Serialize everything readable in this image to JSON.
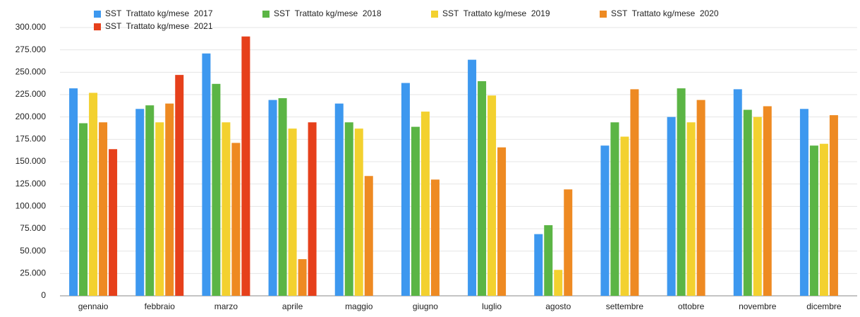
{
  "chart_data": {
    "type": "bar",
    "categories": [
      "gennaio",
      "febbraio",
      "marzo",
      "aprile",
      "maggio",
      "giugno",
      "luglio",
      "agosto",
      "settembre",
      "ottobre",
      "novembre",
      "dicembre"
    ],
    "series": [
      {
        "name": "SST  Trattato kg/mese  2017",
        "color": "#3d98ef",
        "values": [
          232000,
          209000,
          271000,
          219000,
          215000,
          238000,
          264000,
          69000,
          168000,
          200000,
          231000,
          209000
        ]
      },
      {
        "name": "SST  Trattato kg/mese  2018",
        "color": "#5bb545",
        "values": [
          193000,
          213000,
          237000,
          221000,
          194000,
          189000,
          240000,
          79000,
          194000,
          232000,
          208000,
          168000
        ]
      },
      {
        "name": "SST  Trattato kg/mese  2019",
        "color": "#f3d12f",
        "values": [
          227000,
          194000,
          194000,
          187000,
          187000,
          206000,
          224000,
          29000,
          178000,
          194000,
          200000,
          170000
        ]
      },
      {
        "name": "SST  Trattato kg/mese  2020",
        "color": "#ee8a22",
        "values": [
          194000,
          215000,
          171000,
          41000,
          134000,
          130000,
          166000,
          119000,
          231000,
          219000,
          212000,
          202000
        ]
      },
      {
        "name": "SST  Trattato kg/mese  2021",
        "color": "#e6401b",
        "values": [
          164000,
          247000,
          290000,
          194000,
          null,
          null,
          null,
          null,
          null,
          null,
          null,
          null
        ]
      }
    ],
    "ylim": [
      0,
      300000
    ],
    "yticks": [
      0,
      {
        "value": 25000,
        "label": "25.000"
      },
      {
        "value": 50000,
        "label": "50.000"
      },
      {
        "value": 75000,
        "label": "75.000"
      },
      {
        "value": 100000,
        "label": "100.000"
      },
      {
        "value": 125000,
        "label": "125.000"
      },
      {
        "value": 150000,
        "label": "150.000"
      },
      {
        "value": 175000,
        "label": "175.000"
      },
      {
        "value": 200000,
        "label": "200.000"
      },
      {
        "value": 225000,
        "label": "225.000"
      },
      {
        "value": 250000,
        "label": "250.000"
      },
      {
        "value": 275000,
        "label": "275.000"
      },
      {
        "value": 300000,
        "label": "300.000"
      }
    ],
    "grid": true,
    "legend": "top"
  }
}
